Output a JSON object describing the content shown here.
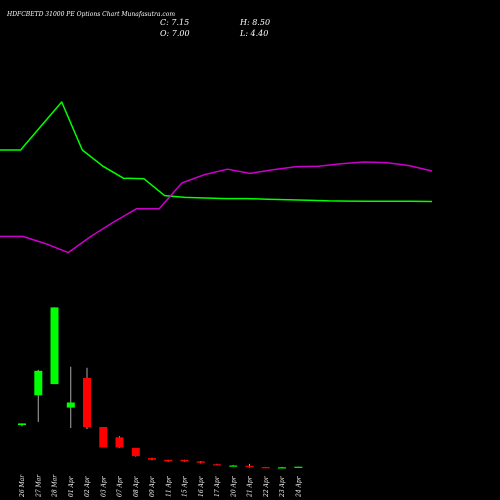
{
  "chart_data": {
    "type": "candlestick",
    "title": "HDFCBETD 31000 PE Options Chart Munafasutra.com",
    "ohlc_text": {
      "open": "O: 7.00",
      "high": "H: 8.50",
      "close": "C: 7.15",
      "low": "L: 4.40"
    },
    "colors": {
      "background": "#000000",
      "up": "#00ff00",
      "down": "#ff0000",
      "line_green": "#00ff00",
      "line_magenta": "#cc00cc",
      "text": "#ffffff"
    },
    "categories": [
      "26 Mar",
      "27 Mar",
      "28 Mar",
      "01 Apr",
      "02 Apr",
      "03 Apr",
      "07 Apr",
      "08 Apr",
      "09 Apr",
      "11 Apr",
      "15 Apr",
      "16 Apr",
      "17 Apr",
      "20 Apr",
      "21 Apr",
      "22 Apr",
      "23 Apr",
      "24 Apr"
    ],
    "candles": [
      {
        "open": 12.0,
        "high": 12.8,
        "low": 11.3,
        "close": 12.8
      },
      {
        "open": 26.5,
        "high": 39.0,
        "low": 13.5,
        "close": 38.5
      },
      {
        "open": 32.0,
        "high": 69.5,
        "low": 32.0,
        "close": 69.5
      },
      {
        "open": 20.5,
        "high": 40.5,
        "low": 10.5,
        "close": 23.0
      },
      {
        "open": 35.0,
        "high": 40.0,
        "low": 10.0,
        "close": 11.0
      },
      {
        "open": 11.0,
        "high": 11.0,
        "low": 1.0,
        "close": 1.0
      },
      {
        "open": 6.0,
        "high": 6.5,
        "low": 0.8,
        "close": 1.0
      },
      {
        "open": 0.8,
        "high": 0.8,
        "low": -3.5,
        "close": -3.2
      },
      {
        "open": -4.2,
        "high": -4.0,
        "low": -5.3,
        "close": -5.0
      },
      {
        "open": -5.0,
        "high": -5.0,
        "low": -6.0,
        "close": -5.8
      },
      {
        "open": -5.0,
        "high": -5.0,
        "low": -6.0,
        "close": -5.8
      },
      {
        "open": -5.8,
        "high": -5.6,
        "low": -6.8,
        "close": -6.5
      },
      {
        "open": -7.2,
        "high": -6.9,
        "low": -7.5,
        "close": -7.3
      },
      {
        "open": -7.8,
        "high": -7.6,
        "low": -7.9,
        "close": -7.8
      },
      {
        "open": -7.9,
        "high": -7.0,
        "low": -8.8,
        "close": -8.3
      },
      {
        "open": -8.6,
        "high": -8.5,
        "low": -8.9,
        "close": -8.7
      },
      {
        "open": -8.7,
        "high": -8.5,
        "low": -8.9,
        "close": -8.7
      },
      {
        "open": -8.8,
        "high": -8.4,
        "low": -8.9,
        "close": -8.4
      }
    ],
    "indicator_lines": [
      {
        "color": "#00ff00",
        "values": [
          100.0,
          100.0,
          120.0,
          140.0,
          100.0,
          86.5,
          76.5,
          76.0,
          62.0,
          60.5,
          60.0,
          59.5,
          59.5,
          59.0,
          58.6,
          58.2,
          57.6,
          57.4,
          57.3,
          57.3,
          57.3,
          57.1
        ]
      },
      {
        "color": "#cc00cc",
        "values": [
          28.0,
          28.0,
          22.0,
          14.5,
          28.0,
          40.0,
          51.0,
          51.0,
          72.5,
          79.5,
          84.0,
          80.5,
          83.5,
          86.0,
          86.5,
          88.5,
          90.0,
          89.5,
          87.0,
          82.5
        ]
      }
    ],
    "price_range": [
      -10,
      100
    ],
    "indicator_range": [
      0,
      200
    ]
  }
}
